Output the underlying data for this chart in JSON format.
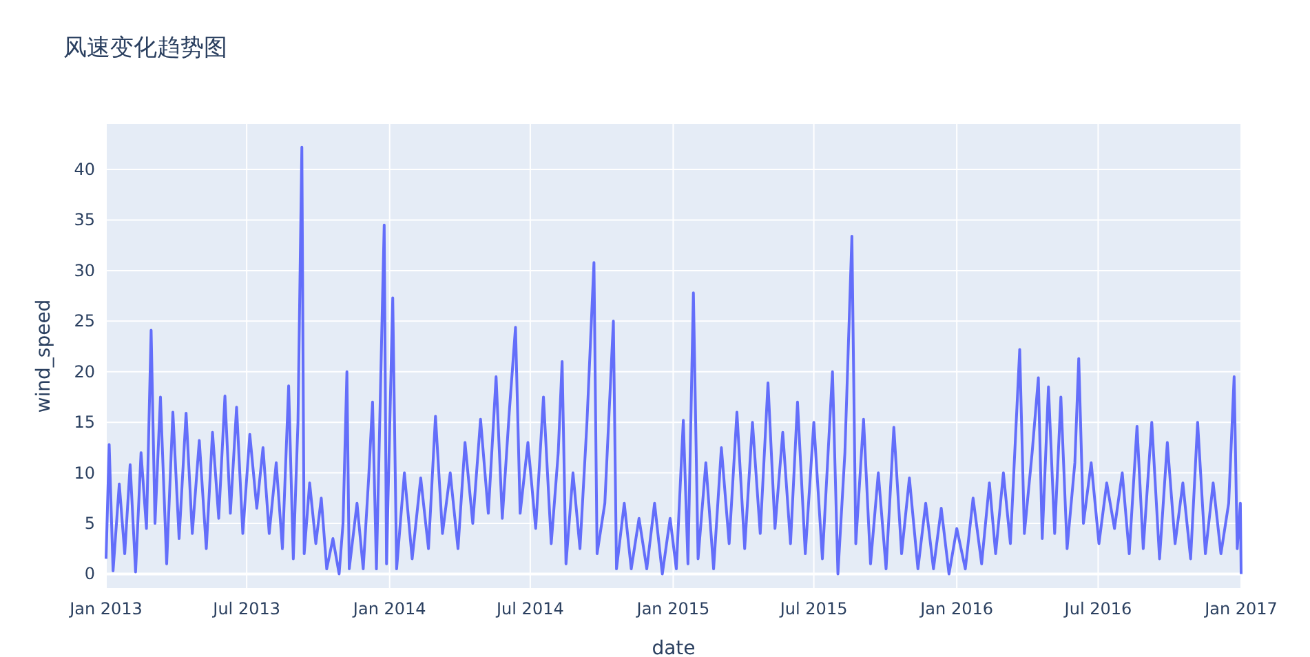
{
  "chart_data": {
    "type": "line",
    "title": "风速变化趋势图",
    "xlabel": "date",
    "ylabel": "wind_speed",
    "xlim": [
      "2013-01-01",
      "2017-01-01"
    ],
    "ylim": [
      -1.4,
      44.5
    ],
    "xticks": [
      {
        "value": "2013-01-01",
        "label": "Jan 2013"
      },
      {
        "value": "2013-07-01",
        "label": "Jul 2013"
      },
      {
        "value": "2014-01-01",
        "label": "Jan 2014"
      },
      {
        "value": "2014-07-01",
        "label": "Jul 2014"
      },
      {
        "value": "2015-01-01",
        "label": "Jan 2015"
      },
      {
        "value": "2015-07-01",
        "label": "Jul 2015"
      },
      {
        "value": "2016-01-01",
        "label": "Jan 2016"
      },
      {
        "value": "2016-07-01",
        "label": "Jul 2016"
      },
      {
        "value": "2017-01-01",
        "label": "Jan 2017"
      }
    ],
    "yticks": [
      0,
      5,
      10,
      15,
      20,
      25,
      30,
      35,
      40
    ],
    "grid": true,
    "series": [
      {
        "color": "#636efa",
        "line_style": "solid",
        "x": [
          "2013-01-01",
          "2013-01-05",
          "2013-01-10",
          "2013-01-18",
          "2013-01-25",
          "2013-02-01",
          "2013-02-08",
          "2013-02-15",
          "2013-02-22",
          "2013-02-28",
          "2013-03-05",
          "2013-03-12",
          "2013-03-20",
          "2013-03-28",
          "2013-04-05",
          "2013-04-14",
          "2013-04-22",
          "2013-05-01",
          "2013-05-10",
          "2013-05-18",
          "2013-05-26",
          "2013-06-03",
          "2013-06-10",
          "2013-06-18",
          "2013-06-26",
          "2013-07-05",
          "2013-07-14",
          "2013-07-22",
          "2013-07-30",
          "2013-08-08",
          "2013-08-16",
          "2013-08-24",
          "2013-08-30",
          "2013-09-05",
          "2013-09-10",
          "2013-09-13",
          "2013-09-20",
          "2013-09-28",
          "2013-10-05",
          "2013-10-12",
          "2013-10-20",
          "2013-10-28",
          "2013-11-02",
          "2013-11-07",
          "2013-11-10",
          "2013-11-20",
          "2013-11-28",
          "2013-12-05",
          "2013-12-10",
          "2013-12-15",
          "2013-12-25",
          "2013-12-28",
          "2014-01-05",
          "2014-01-10",
          "2014-01-20",
          "2014-01-30",
          "2014-02-10",
          "2014-02-20",
          "2014-03-01",
          "2014-03-10",
          "2014-03-20",
          "2014-03-30",
          "2014-04-08",
          "2014-04-18",
          "2014-04-28",
          "2014-05-08",
          "2014-05-18",
          "2014-05-26",
          "2014-06-04",
          "2014-06-12",
          "2014-06-18",
          "2014-06-28",
          "2014-07-08",
          "2014-07-18",
          "2014-07-28",
          "2014-08-06",
          "2014-08-11",
          "2014-08-16",
          "2014-08-25",
          "2014-09-03",
          "2014-09-12",
          "2014-09-21",
          "2014-09-25",
          "2014-10-05",
          "2014-10-16",
          "2014-10-20",
          "2014-10-30",
          "2014-11-08",
          "2014-11-18",
          "2014-11-28",
          "2014-12-08",
          "2014-12-18",
          "2014-12-28",
          "2015-01-05",
          "2015-01-14",
          "2015-01-20",
          "2015-01-27",
          "2015-02-02",
          "2015-02-12",
          "2015-02-22",
          "2015-03-04",
          "2015-03-14",
          "2015-03-24",
          "2015-04-03",
          "2015-04-13",
          "2015-04-23",
          "2015-05-03",
          "2015-05-12",
          "2015-05-22",
          "2015-06-01",
          "2015-06-10",
          "2015-06-20",
          "2015-07-01",
          "2015-07-12",
          "2015-07-25",
          "2015-08-01",
          "2015-08-10",
          "2015-08-19",
          "2015-08-24",
          "2015-09-03",
          "2015-09-12",
          "2015-09-22",
          "2015-10-02",
          "2015-10-12",
          "2015-10-22",
          "2015-11-01",
          "2015-11-12",
          "2015-11-22",
          "2015-12-02",
          "2015-12-12",
          "2015-12-22",
          "2016-01-01",
          "2016-01-12",
          "2016-01-22",
          "2016-02-02",
          "2016-02-12",
          "2016-02-20",
          "2016-03-01",
          "2016-03-10",
          "2016-03-22",
          "2016-03-28",
          "2016-04-07",
          "2016-04-15",
          "2016-04-20",
          "2016-04-28",
          "2016-05-06",
          "2016-05-14",
          "2016-05-22",
          "2016-06-01",
          "2016-06-06",
          "2016-06-12",
          "2016-06-22",
          "2016-07-02",
          "2016-07-12",
          "2016-07-22",
          "2016-08-01",
          "2016-08-10",
          "2016-08-20",
          "2016-08-28",
          "2016-09-08",
          "2016-09-18",
          "2016-09-28",
          "2016-10-08",
          "2016-10-18",
          "2016-10-28",
          "2016-11-06",
          "2016-11-16",
          "2016-11-26",
          "2016-12-06",
          "2016-12-16",
          "2016-12-23",
          "2016-12-27",
          "2016-12-31",
          "2017-01-01"
        ],
        "values": [
          1.5,
          12.8,
          0.3,
          8.9,
          2.0,
          10.8,
          0.2,
          12.0,
          4.5,
          24.1,
          5.0,
          17.5,
          1.0,
          16.0,
          3.5,
          15.9,
          4.0,
          13.2,
          2.5,
          14.0,
          5.5,
          17.6,
          6.0,
          16.5,
          4.0,
          13.8,
          6.5,
          12.5,
          4.0,
          11.0,
          2.5,
          18.6,
          1.5,
          15.0,
          42.2,
          2.0,
          9.0,
          3.0,
          7.5,
          0.5,
          3.5,
          0.0,
          5.0,
          20.0,
          0.5,
          7.0,
          0.5,
          9.5,
          17.0,
          0.5,
          34.5,
          1.0,
          27.3,
          0.5,
          10.0,
          1.5,
          9.5,
          2.5,
          15.6,
          4.0,
          10.0,
          2.5,
          13.0,
          5.0,
          15.3,
          6.0,
          19.5,
          5.5,
          16.0,
          24.4,
          6.0,
          13.0,
          4.5,
          17.5,
          3.0,
          12.0,
          21.0,
          1.0,
          10.0,
          2.5,
          15.0,
          30.8,
          2.0,
          7.0,
          25.0,
          0.5,
          7.0,
          0.5,
          5.5,
          0.5,
          7.0,
          0.0,
          5.5,
          0.5,
          15.2,
          1.0,
          27.8,
          1.5,
          11.0,
          0.5,
          12.5,
          3.0,
          16.0,
          2.5,
          15.0,
          4.0,
          18.9,
          4.5,
          14.0,
          3.0,
          17.0,
          2.0,
          15.0,
          1.5,
          20.0,
          0.0,
          12.0,
          33.4,
          3.0,
          15.3,
          1.0,
          10.0,
          0.5,
          14.5,
          2.0,
          9.5,
          0.5,
          7.0,
          0.5,
          6.5,
          0.0,
          4.5,
          0.5,
          7.5,
          1.0,
          9.0,
          2.0,
          10.0,
          3.0,
          22.2,
          4.0,
          12.0,
          19.4,
          3.5,
          18.5,
          4.0,
          17.5,
          2.5,
          11.0,
          21.3,
          5.0,
          11.0,
          3.0,
          9.0,
          4.5,
          10.0,
          2.0,
          14.6,
          2.5,
          15.0,
          1.5,
          13.0,
          3.0,
          9.0,
          1.5,
          15.0,
          2.0,
          9.0,
          2.0,
          7.0,
          19.5,
          2.5,
          7.0,
          0.0
        ]
      }
    ]
  }
}
